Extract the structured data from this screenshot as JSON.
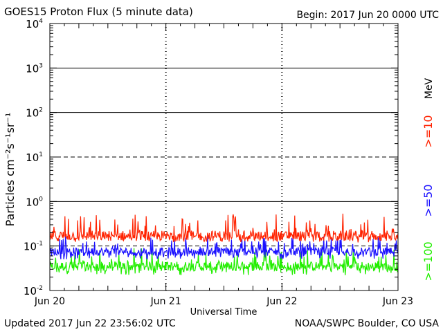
{
  "header": {
    "title": "GOES15 Proton Flux (5 minute data)",
    "begin": "Begin: 2017 Jun 20 0000 UTC"
  },
  "footer": {
    "updated": "Updated 2017 Jun 22 23:56:02 UTC",
    "credit": "NOAA/SWPC Boulder, CO USA"
  },
  "colors": {
    "ge10": "#ff2200",
    "ge50": "#1a10ff",
    "ge100": "#22ee00",
    "axis": "#000000"
  },
  "chart_data": {
    "type": "line",
    "title": "GOES15 Proton Flux (5 minute data)",
    "xlabel": "Universal Time",
    "ylabel": "Particles cm⁻²s⁻¹sr⁻¹",
    "yscale": "log",
    "ylim": [
      0.01,
      10000
    ],
    "xlim": [
      "2017-06-20 00:00",
      "2017-06-23 00:00"
    ],
    "x_ticks": [
      "Jun 20",
      "Jun 21",
      "Jun 22",
      "Jun 23"
    ],
    "y_ticks": [
      {
        "base": "10",
        "exp": "4"
      },
      {
        "base": "10",
        "exp": "3"
      },
      {
        "base": "10",
        "exp": "2"
      },
      {
        "base": "10",
        "exp": "1"
      },
      {
        "base": "10",
        "exp": "0"
      },
      {
        "base": "10",
        "exp": "-1"
      },
      {
        "base": "10",
        "exp": "-2"
      }
    ],
    "gridlines": [
      {
        "value": 1000,
        "style": "solid"
      },
      {
        "value": 100,
        "style": "solid"
      },
      {
        "value": 10,
        "style": "dashed"
      },
      {
        "value": 1,
        "style": "solid"
      },
      {
        "value": 0.1,
        "style": "dashed"
      }
    ],
    "legend_unit": "MeV",
    "series": [
      {
        "name": ">=10",
        "color": "#ff2200",
        "typical": 0.17,
        "min": 0.12,
        "max": 0.55
      },
      {
        "name": ">=50",
        "color": "#1a10ff",
        "typical": 0.075,
        "min": 0.05,
        "max": 0.17
      },
      {
        "name": ">=100",
        "color": "#22ee00",
        "typical": 0.035,
        "min": 0.022,
        "max": 0.09
      }
    ]
  }
}
